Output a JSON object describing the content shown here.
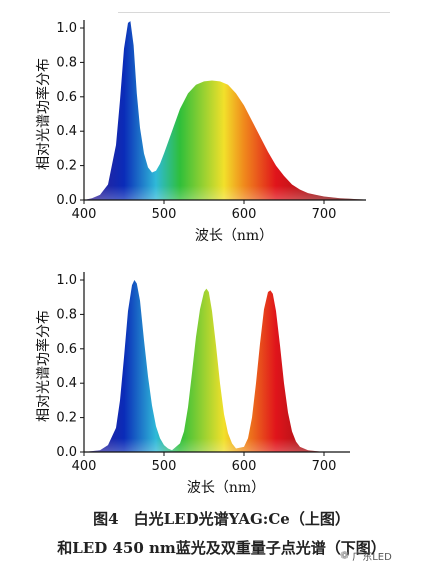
{
  "chart_data": [
    {
      "type": "area",
      "xlabel": "波长（nm）",
      "ylabel": "相对光谱功率分布",
      "xlim": [
        400,
        750
      ],
      "ylim": [
        0,
        1.0
      ],
      "xticks": [
        400,
        500,
        600,
        700
      ],
      "yticks": [
        0.0,
        0.2,
        0.4,
        0.6,
        0.8,
        1.0
      ],
      "x": [
        400,
        410,
        420,
        430,
        440,
        445,
        450,
        455,
        458,
        462,
        466,
        470,
        475,
        480,
        485,
        490,
        495,
        500,
        510,
        520,
        530,
        540,
        550,
        560,
        570,
        580,
        590,
        600,
        610,
        620,
        630,
        640,
        650,
        660,
        670,
        680,
        690,
        700,
        710,
        720,
        730,
        740,
        750
      ],
      "y": [
        0.0,
        0.01,
        0.03,
        0.09,
        0.32,
        0.58,
        0.88,
        1.03,
        1.04,
        0.9,
        0.62,
        0.42,
        0.27,
        0.19,
        0.16,
        0.17,
        0.21,
        0.27,
        0.4,
        0.53,
        0.62,
        0.67,
        0.69,
        0.695,
        0.69,
        0.67,
        0.62,
        0.55,
        0.46,
        0.37,
        0.28,
        0.2,
        0.14,
        0.09,
        0.06,
        0.04,
        0.03,
        0.02,
        0.015,
        0.01,
        0.008,
        0.005,
        0.003
      ],
      "fill": "visible-spectrum-gradient"
    },
    {
      "type": "area",
      "xlabel": "波长（nm）",
      "ylabel": "相对光谱功率分布",
      "xlim": [
        400,
        730
      ],
      "ylim": [
        0,
        1.0
      ],
      "xticks": [
        400,
        500,
        600,
        700
      ],
      "yticks": [
        0.0,
        0.2,
        0.4,
        0.6,
        0.8,
        1.0
      ],
      "x": [
        400,
        420,
        430,
        440,
        445,
        450,
        455,
        460,
        463,
        466,
        470,
        475,
        480,
        485,
        490,
        495,
        500,
        505,
        510,
        520,
        525,
        530,
        535,
        540,
        545,
        550,
        553,
        556,
        560,
        565,
        570,
        575,
        580,
        585,
        590,
        600,
        605,
        610,
        615,
        620,
        625,
        630,
        633,
        636,
        640,
        645,
        650,
        655,
        660,
        665,
        670,
        680,
        700,
        730
      ],
      "y": [
        0.0,
        0.01,
        0.04,
        0.14,
        0.3,
        0.55,
        0.82,
        0.97,
        1.0,
        0.98,
        0.88,
        0.65,
        0.44,
        0.27,
        0.15,
        0.08,
        0.04,
        0.02,
        0.01,
        0.05,
        0.12,
        0.26,
        0.46,
        0.67,
        0.83,
        0.93,
        0.95,
        0.93,
        0.82,
        0.62,
        0.4,
        0.22,
        0.11,
        0.05,
        0.02,
        0.03,
        0.08,
        0.2,
        0.4,
        0.63,
        0.83,
        0.93,
        0.94,
        0.92,
        0.82,
        0.62,
        0.4,
        0.23,
        0.12,
        0.06,
        0.03,
        0.01,
        0.0,
        0.0
      ],
      "fill": "visible-spectrum-gradient"
    }
  ],
  "caption": {
    "line1": "图4　白光LED光谱YAG:Ce（上图）",
    "line2": "和LED 450 nm蓝光及双重量子点光谱（下图）"
  },
  "watermark": {
    "icon": "wechat-logo-icon",
    "text": "广东LED"
  },
  "colors": {
    "violet": "#3a1f8f",
    "blue": "#0a2bb8",
    "cyan": "#2fb9d8",
    "green": "#2fbf3a",
    "yellow": "#f2e02a",
    "orange": "#f08a1c",
    "red": "#e0141b",
    "dark_red": "#5a1010"
  }
}
